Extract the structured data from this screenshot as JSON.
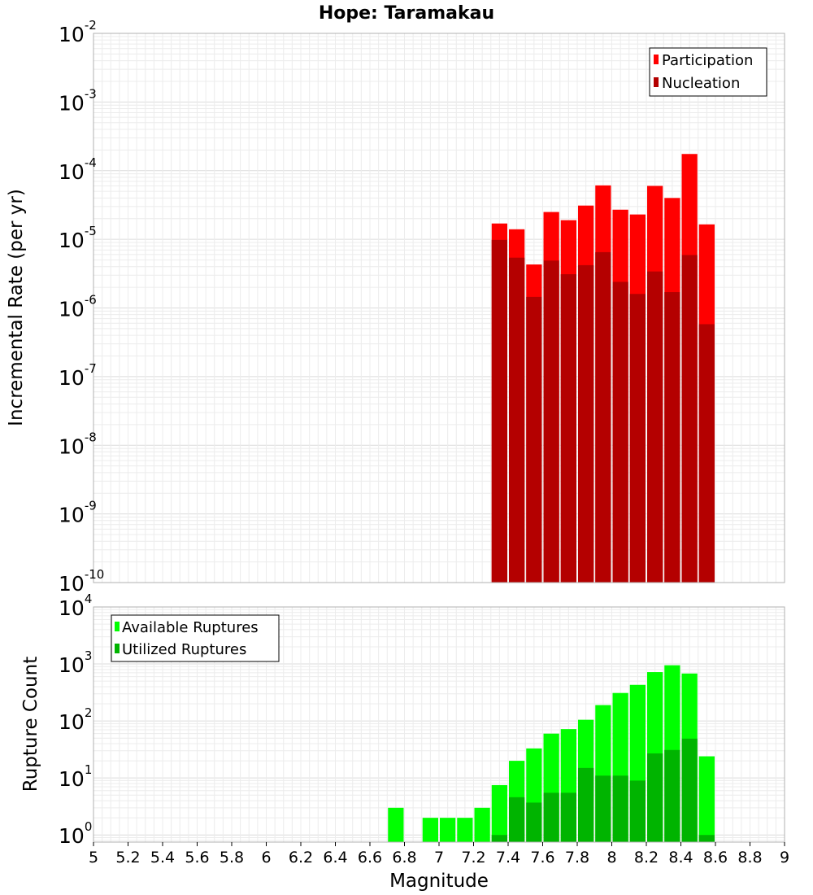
{
  "chart_data": [
    {
      "type": "bar",
      "title": "Hope: Taramakau",
      "xlabel": "Magnitude",
      "ylabel": "Incremental Rate (per yr)",
      "yscale": "log",
      "ylim": [
        1e-10,
        0.01
      ],
      "xlim": [
        5,
        9
      ],
      "grid": true,
      "legend_position": "top-right",
      "x": [
        7.35,
        7.45,
        7.55,
        7.65,
        7.75,
        7.85,
        7.95,
        8.05,
        8.15,
        8.25,
        8.35,
        8.45,
        8.55
      ],
      "series": [
        {
          "name": "Participation",
          "color": "#ff0000",
          "values": [
            1.7e-05,
            1.4e-05,
            4.3e-06,
            2.5e-05,
            1.9e-05,
            3.1e-05,
            6.1e-05,
            2.7e-05,
            2.3e-05,
            6e-05,
            4e-05,
            0.000175,
            1.65e-05
          ]
        },
        {
          "name": "Nucleation",
          "color": "#b40000",
          "values": [
            9.8e-06,
            5.4e-06,
            1.45e-06,
            4.9e-06,
            3.1e-06,
            4.2e-06,
            6.5e-06,
            2.4e-06,
            1.6e-06,
            3.4e-06,
            1.7e-06,
            5.9e-06,
            5.8e-07
          ]
        }
      ],
      "y_ticks": [
        {
          "base": "10",
          "exp": "-2"
        },
        {
          "base": "10",
          "exp": "-3"
        },
        {
          "base": "10",
          "exp": "-4"
        },
        {
          "base": "10",
          "exp": "-5"
        },
        {
          "base": "10",
          "exp": "-6"
        },
        {
          "base": "10",
          "exp": "-7"
        },
        {
          "base": "10",
          "exp": "-8"
        },
        {
          "base": "10",
          "exp": "-9"
        },
        {
          "base": "10",
          "exp": "-10"
        }
      ]
    },
    {
      "type": "bar",
      "xlabel": "Magnitude",
      "ylabel": "Rupture Count",
      "yscale": "log",
      "ylim": [
        0.75,
        10000
      ],
      "xlim": [
        5,
        9
      ],
      "grid": true,
      "legend_position": "top-left",
      "x": [
        6.75,
        6.95,
        7.05,
        7.15,
        7.25,
        7.35,
        7.45,
        7.55,
        7.65,
        7.75,
        7.85,
        7.95,
        8.05,
        8.15,
        8.25,
        8.35,
        8.45,
        8.55
      ],
      "series": [
        {
          "name": "Available Ruptures",
          "color": "#00ff00",
          "values": [
            3,
            2,
            2,
            2,
            3,
            7.5,
            20,
            33,
            60,
            72,
            105,
            190,
            310,
            430,
            720,
            950,
            680,
            24
          ]
        },
        {
          "name": "Utilized Ruptures",
          "color": "#00b400",
          "values": [
            0,
            0,
            0,
            0,
            0,
            1,
            4.6,
            3.7,
            5.5,
            5.5,
            15,
            11,
            11,
            9,
            27,
            31,
            49,
            1
          ]
        }
      ],
      "y_ticks": [
        {
          "base": "10",
          "exp": "4"
        },
        {
          "base": "10",
          "exp": "3"
        },
        {
          "base": "10",
          "exp": "2"
        },
        {
          "base": "10",
          "exp": "1"
        },
        {
          "base": "10",
          "exp": "0"
        }
      ],
      "x_ticks": [
        "5",
        "5.2",
        "5.4",
        "5.6",
        "5.8",
        "6",
        "6.2",
        "6.4",
        "6.6",
        "6.8",
        "7",
        "7.2",
        "7.4",
        "7.6",
        "7.8",
        "8",
        "8.2",
        "8.4",
        "8.6",
        "8.8",
        "9"
      ]
    }
  ]
}
